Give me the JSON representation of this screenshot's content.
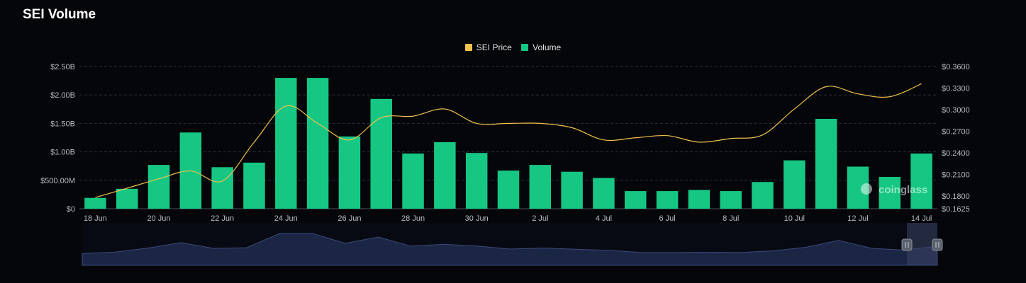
{
  "title": "SEI Volume",
  "legend": [
    {
      "name": "SEI Price",
      "color": "#f0c14b"
    },
    {
      "name": "Volume",
      "color": "#16c784"
    }
  ],
  "watermark": "coinglass",
  "chart_data": {
    "type": "bar",
    "title": "SEI Volume",
    "categories": [
      "18 Jun",
      "19 Jun",
      "20 Jun",
      "21 Jun",
      "22 Jun",
      "23 Jun",
      "24 Jun",
      "25 Jun",
      "26 Jun",
      "27 Jun",
      "28 Jun",
      "29 Jun",
      "30 Jun",
      "1 Jul",
      "2 Jul",
      "3 Jul",
      "4 Jul",
      "5 Jul",
      "6 Jul",
      "7 Jul",
      "8 Jul",
      "9 Jul",
      "10 Jul",
      "11 Jul",
      "12 Jul",
      "13 Jul",
      "14 Jul"
    ],
    "x_tick_labels": [
      "18 Jun",
      "20 Jun",
      "22 Jun",
      "24 Jun",
      "26 Jun",
      "28 Jun",
      "30 Jun",
      "2 Jul",
      "4 Jul",
      "6 Jul",
      "8 Jul",
      "10 Jul",
      "12 Jul",
      "14 Jul"
    ],
    "series": [
      {
        "name": "Volume",
        "axis": "left",
        "color": "#16c784",
        "values": [
          190000000,
          350000000,
          770000000,
          1340000000,
          730000000,
          810000000,
          2300000000,
          2300000000,
          1270000000,
          1930000000,
          970000000,
          1170000000,
          980000000,
          670000000,
          770000000,
          650000000,
          540000000,
          310000000,
          310000000,
          330000000,
          310000000,
          470000000,
          850000000,
          1580000000,
          740000000,
          560000000,
          970000000
        ]
      },
      {
        "name": "SEI Price",
        "axis": "right",
        "color": "#f0c14b",
        "type": "line",
        "values": [
          0.178,
          0.191,
          0.204,
          0.215,
          0.201,
          0.255,
          0.305,
          0.281,
          0.258,
          0.289,
          0.291,
          0.301,
          0.281,
          0.281,
          0.281,
          0.275,
          0.258,
          0.261,
          0.264,
          0.255,
          0.26,
          0.265,
          0.301,
          0.332,
          0.322,
          0.318,
          0.336
        ]
      }
    ],
    "ylim_left": [
      0,
      2500000000
    ],
    "ylim_right": [
      0.1625,
      0.36
    ],
    "left_ticks": [
      "$0",
      "$500.00M",
      "$1.00B",
      "$1.50B",
      "$2.00B",
      "$2.50B"
    ],
    "right_ticks": [
      "$0.1625",
      "$0.1800",
      "$0.2100",
      "$0.2400",
      "$0.2700",
      "$0.3000",
      "$0.3300",
      "$0.3600"
    ],
    "grid": true,
    "legend_position": "top-center"
  }
}
